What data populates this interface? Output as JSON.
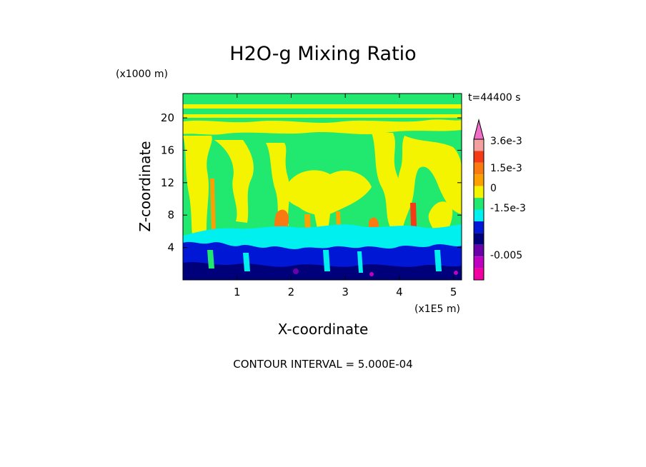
{
  "chart_data": {
    "type": "heatmap",
    "title": "H2O-g Mixing Ratio",
    "xlabel": "X-coordinate",
    "ylabel": "Z-coordinate",
    "x_units": "(x1E5 m)",
    "y_units": "(x1000 m)",
    "time_label": "t=44400 s",
    "contour_interval_label": "CONTOUR INTERVAL = 5.000E-04",
    "xlim": [
      0,
      5.15
    ],
    "ylim": [
      0,
      23
    ],
    "x_ticks": [
      "1",
      "2",
      "3",
      "4",
      "5"
    ],
    "y_ticks": [
      "4",
      "8",
      "12",
      "16",
      "20"
    ],
    "colorbar": {
      "labels": [
        "3.6e-3",
        "1.5e-3",
        "0",
        "-1.5e-3",
        "-0.005"
      ],
      "colors": [
        "#f06ec8",
        "#f3a0a0",
        "#f53a16",
        "#f87a10",
        "#fba000",
        "#f4f400",
        "#21e86e",
        "#00f0f0",
        "#0018d6",
        "#00007a",
        "#6a00a8",
        "#c000c0",
        "#f000a0"
      ]
    },
    "grid": false,
    "legend": "colorbar-right"
  }
}
